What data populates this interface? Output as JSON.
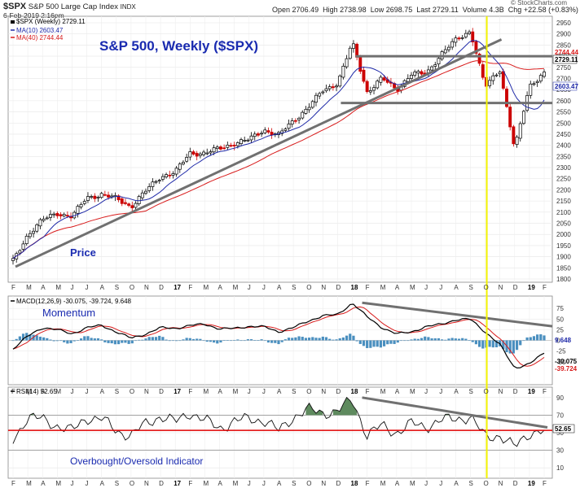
{
  "header": {
    "symbol": "$SPX",
    "description": "S&P 500 Large Cap Index",
    "exchange": "INDX",
    "date": "6-Feb-2019 2:16pm",
    "open_label": "Open",
    "open": "2706.49",
    "high_label": "High",
    "high": "2738.98",
    "low_label": "Low",
    "low": "2698.75",
    "last_label": "Last",
    "last": "2729.11",
    "volume_label": "Volume",
    "volume": "4.3B",
    "chg_label": "Chg",
    "chg": "+22.58 (+0.83%)",
    "watermark": "© StockCharts.com"
  },
  "price_panel": {
    "legend_main": "$SPX (Weekly) 2729.11",
    "legend_ma10": "MA(10) 2603.47",
    "legend_ma40": "MA(40) 2744.44",
    "title": "S&P 500, Weekly ($SPX)",
    "annotation": "Price",
    "last_box": "2729.11",
    "ma40_box": "2744.44",
    "ma10_box": "2603.47"
  },
  "macd_panel": {
    "legend": "MACD(12,26,9) -30.075, -39.724, 9.648",
    "annotation": "Momentum",
    "box_hist": "9.648",
    "box_macd": "-30.075",
    "box_signal": "-39.724"
  },
  "rsi_panel": {
    "legend": "RSI(14) 52.65",
    "annotation": "Overbought/Oversold Indicator",
    "box_rsi": "52.65"
  },
  "colors": {
    "up": "#000000",
    "down": "#cc0000",
    "ma10": "#1f2aa8",
    "ma40": "#d81b1b",
    "trend": "#707070",
    "vline": "#f2f200",
    "rsi_fill": "#5e8a5e",
    "rsi_base": "#e00000",
    "annotation": "#1a2bb0"
  },
  "chart_data": [
    {
      "type": "candlestick",
      "name": "S&P 500 weekly price",
      "ylim": [
        1800,
        2950
      ],
      "yticks": [
        1800,
        1850,
        1900,
        1950,
        2000,
        2050,
        2100,
        2150,
        2200,
        2250,
        2300,
        2350,
        2400,
        2450,
        2500,
        2550,
        2600,
        2650,
        2700,
        2750,
        2800,
        2850,
        2900,
        2950
      ],
      "xticks": [
        "F",
        "M",
        "A",
        "M",
        "J",
        "J",
        "A",
        "S",
        "O",
        "N",
        "D",
        "17",
        "F",
        "M",
        "A",
        "M",
        "J",
        "J",
        "A",
        "S",
        "O",
        "N",
        "D",
        "18",
        "F",
        "M",
        "A",
        "M",
        "J",
        "J",
        "A",
        "S",
        "O",
        "N",
        "D",
        "19",
        "F"
      ],
      "close_anchors": [
        [
          "2016-02",
          1880
        ],
        [
          "2016-03",
          2000
        ],
        [
          "2016-04",
          2065
        ],
        [
          "2016-05",
          2095
        ],
        [
          "2016-06",
          2080
        ],
        [
          "2016-07",
          2165
        ],
        [
          "2016-08",
          2180
        ],
        [
          "2016-09",
          2160
        ],
        [
          "2016-10",
          2125
        ],
        [
          "2016-11",
          2195
        ],
        [
          "2016-12",
          2260
        ],
        [
          "2017-01",
          2280
        ],
        [
          "2017-02",
          2365
        ],
        [
          "2017-03",
          2365
        ],
        [
          "2017-04",
          2385
        ],
        [
          "2017-05",
          2410
        ],
        [
          "2017-06",
          2425
        ],
        [
          "2017-07",
          2470
        ],
        [
          "2017-08",
          2445
        ],
        [
          "2017-09",
          2510
        ],
        [
          "2017-10",
          2570
        ],
        [
          "2017-11",
          2645
        ],
        [
          "2017-12",
          2680
        ],
        [
          "2018-01",
          2860
        ],
        [
          "2018-02",
          2640
        ],
        [
          "2018-03",
          2700
        ],
        [
          "2018-04",
          2650
        ],
        [
          "2018-05",
          2720
        ],
        [
          "2018-06",
          2720
        ],
        [
          "2018-07",
          2810
        ],
        [
          "2018-08",
          2870
        ],
        [
          "2018-09",
          2915
        ],
        [
          "2018-10",
          2660
        ],
        [
          "2018-11",
          2740
        ],
        [
          "2018-12",
          2380
        ],
        [
          "2019-01",
          2665
        ],
        [
          "2019-02",
          2729.11
        ]
      ],
      "ma10_last": 2603.47,
      "ma40_last": 2744.44,
      "last": 2729.11,
      "horizontal_levels": [
        2800,
        2590
      ],
      "trendline": [
        [
          "2016-02",
          1855
        ],
        [
          "2018-10",
          2875
        ]
      ],
      "vertical_marker": "2018-10"
    },
    {
      "type": "macd",
      "name": "MACD(12,26,9)",
      "ylim": [
        -100,
        100
      ],
      "yticks": [
        -50,
        -25,
        0,
        25,
        50,
        75
      ],
      "macd": -30.075,
      "signal": -39.724,
      "histogram": 9.648,
      "macd_anchors": [
        [
          "2016-02",
          -20
        ],
        [
          "2016-03",
          10
        ],
        [
          "2016-04",
          30
        ],
        [
          "2016-05",
          25
        ],
        [
          "2016-06",
          15
        ],
        [
          "2016-07",
          30
        ],
        [
          "2016-08",
          35
        ],
        [
          "2016-09",
          20
        ],
        [
          "2016-10",
          5
        ],
        [
          "2016-11",
          15
        ],
        [
          "2016-12",
          30
        ],
        [
          "2017-01",
          28
        ],
        [
          "2017-02",
          35
        ],
        [
          "2017-03",
          38
        ],
        [
          "2017-04",
          27
        ],
        [
          "2017-05",
          28
        ],
        [
          "2017-06",
          33
        ],
        [
          "2017-07",
          32
        ],
        [
          "2017-08",
          20
        ],
        [
          "2017-09",
          30
        ],
        [
          "2017-10",
          45
        ],
        [
          "2017-11",
          58
        ],
        [
          "2017-12",
          60
        ],
        [
          "2018-01",
          88
        ],
        [
          "2018-02",
          55
        ],
        [
          "2018-03",
          30
        ],
        [
          "2018-04",
          15
        ],
        [
          "2018-05",
          20
        ],
        [
          "2018-06",
          32
        ],
        [
          "2018-07",
          38
        ],
        [
          "2018-08",
          48
        ],
        [
          "2018-09",
          50
        ],
        [
          "2018-10",
          20
        ],
        [
          "2018-11",
          -10
        ],
        [
          "2018-12",
          -65
        ],
        [
          "2019-01",
          -55
        ],
        [
          "2019-02",
          -30
        ]
      ],
      "trendline": [
        [
          "2018-01",
          88
        ],
        [
          "2019-02",
          33
        ]
      ]
    },
    {
      "type": "line",
      "name": "RSI(14)",
      "ylim": [
        0,
        100
      ],
      "yticks": [
        10,
        30,
        50,
        70,
        90
      ],
      "last": 52.65,
      "overbought": 70,
      "oversold": 30,
      "baseline": 52.65,
      "rsi_anchors": [
        [
          "2016-02",
          42
        ],
        [
          "2016-03",
          68
        ],
        [
          "2016-04",
          65
        ],
        [
          "2016-05",
          58
        ],
        [
          "2016-06",
          52
        ],
        [
          "2016-07",
          67
        ],
        [
          "2016-08",
          66
        ],
        [
          "2016-09",
          52
        ],
        [
          "2016-10",
          47
        ],
        [
          "2016-11",
          60
        ],
        [
          "2016-12",
          69
        ],
        [
          "2017-01",
          62
        ],
        [
          "2017-02",
          73
        ],
        [
          "2017-03",
          64
        ],
        [
          "2017-04",
          55
        ],
        [
          "2017-05",
          63
        ],
        [
          "2017-06",
          66
        ],
        [
          "2017-07",
          64
        ],
        [
          "2017-08",
          52
        ],
        [
          "2017-09",
          68
        ],
        [
          "2017-10",
          76
        ],
        [
          "2017-11",
          73
        ],
        [
          "2017-12",
          74
        ],
        [
          "2018-01",
          88
        ],
        [
          "2018-02",
          47
        ],
        [
          "2018-03",
          58
        ],
        [
          "2018-04",
          50
        ],
        [
          "2018-05",
          60
        ],
        [
          "2018-06",
          57
        ],
        [
          "2018-07",
          64
        ],
        [
          "2018-08",
          66
        ],
        [
          "2018-09",
          68
        ],
        [
          "2018-10",
          45
        ],
        [
          "2018-11",
          47
        ],
        [
          "2018-12",
          33
        ],
        [
          "2019-01",
          50
        ],
        [
          "2019-02",
          52.65
        ]
      ],
      "trendline": [
        [
          "2018-01",
          90
        ],
        [
          "2019-02",
          56
        ]
      ]
    }
  ]
}
